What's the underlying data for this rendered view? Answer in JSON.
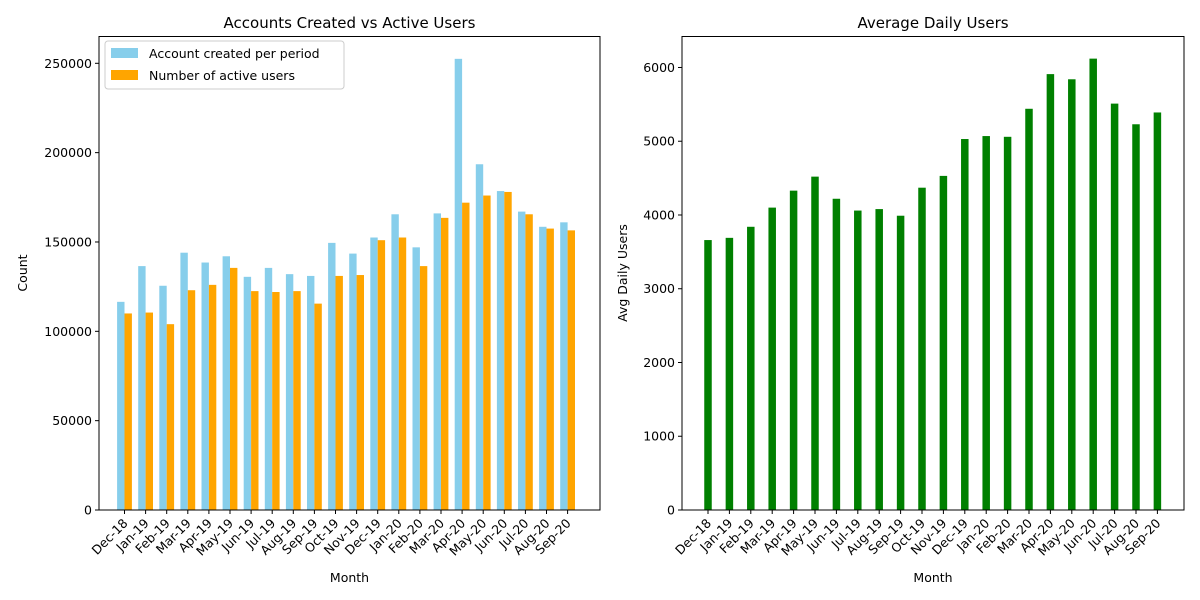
{
  "chart_data": [
    {
      "type": "bar",
      "title": "Accounts Created vs Active Users",
      "xlabel": "Month",
      "ylabel": "Count",
      "ylim": [
        0,
        265000
      ],
      "yticks": [
        0,
        50000,
        100000,
        150000,
        200000,
        250000
      ],
      "legend": "top-left",
      "categories": [
        "Dec-18",
        "Jan-19",
        "Feb-19",
        "Mar-19",
        "Apr-19",
        "May-19",
        "Jun-19",
        "Jul-19",
        "Aug-19",
        "Sep-19",
        "Oct-19",
        "Nov-19",
        "Dec-19",
        "Jan-20",
        "Feb-20",
        "Mar-20",
        "Apr-20",
        "May-20",
        "Jun-20",
        "Jul-20",
        "Aug-20",
        "Sep-20"
      ],
      "series": [
        {
          "name": "Account created per period",
          "color": "#87ceeb",
          "values": [
            116500,
            136500,
            125500,
            144000,
            138500,
            142000,
            130500,
            135500,
            132000,
            131000,
            149500,
            143500,
            152500,
            165500,
            147000,
            166000,
            252500,
            193500,
            178500,
            167000,
            158500,
            161000
          ]
        },
        {
          "name": "Number of active users",
          "color": "#ffa500",
          "values": [
            110000,
            110500,
            104000,
            123000,
            126000,
            135500,
            122500,
            122000,
            122500,
            115500,
            131000,
            131500,
            151000,
            152500,
            136500,
            163500,
            172000,
            176000,
            178000,
            165500,
            157500,
            156500
          ]
        }
      ]
    },
    {
      "type": "bar",
      "title": "Average Daily Users",
      "xlabel": "Month",
      "ylabel": "Avg Daily Users",
      "ylim": [
        0,
        6420
      ],
      "yticks": [
        0,
        1000,
        2000,
        3000,
        4000,
        5000,
        6000
      ],
      "categories": [
        "Dec-18",
        "Jan-19",
        "Feb-19",
        "Mar-19",
        "Apr-19",
        "May-19",
        "Jun-19",
        "Jul-19",
        "Aug-19",
        "Sep-19",
        "Oct-19",
        "Nov-19",
        "Dec-19",
        "Jan-20",
        "Feb-20",
        "Mar-20",
        "Apr-20",
        "May-20",
        "Jun-20",
        "Jul-20",
        "Aug-20",
        "Sep-20"
      ],
      "series": [
        {
          "color": "#008000",
          "values": [
            3660,
            3690,
            3840,
            4100,
            4330,
            4520,
            4220,
            4060,
            4080,
            3990,
            4370,
            4530,
            5030,
            5070,
            5060,
            5440,
            5910,
            5840,
            6120,
            5510,
            5230,
            5390
          ]
        }
      ]
    }
  ]
}
